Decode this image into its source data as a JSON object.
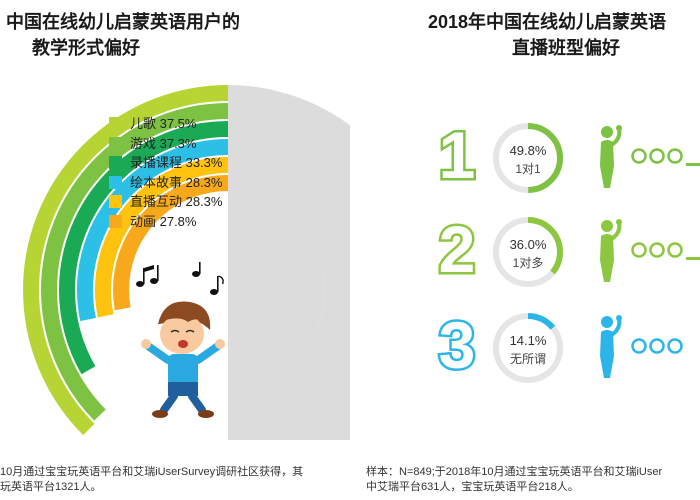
{
  "left": {
    "title_line1": "中国在线幼儿启蒙英语用户的",
    "title_line2": "教学形式偏好",
    "footnote_line1": "10月通过宝宝玩英语平台和艾瑞iUserSurvey调研社区获得，其",
    "footnote_line2": "玩英语平台1321人。"
  },
  "right": {
    "title_line1": "2018年中国在线幼儿启蒙英语",
    "title_line2": "直播班型偏好",
    "footnote_line1": "样本：N=849;于2018年10月通过宝宝玩英语平台和艾瑞iUser",
    "footnote_line2": "中艾瑞平台631人，宝宝玩英语平台218人。"
  },
  "chart_data": [
    {
      "type": "radial-bar",
      "title": "中国在线幼儿启蒙英语用户的教学形式偏好",
      "categories": [
        "儿歌",
        "游戏",
        "录播课程",
        "绘本故事",
        "直播互动",
        "动画"
      ],
      "values": [
        37.5,
        37.3,
        33.3,
        28.3,
        28.3,
        27.8
      ],
      "unit": "%",
      "colors": [
        "#b6d534",
        "#7dc242",
        "#1aaa55",
        "#2cc0e6",
        "#ffc20e",
        "#f7a81b"
      ],
      "legend": [
        {
          "name": "儿歌",
          "value": "37.5%",
          "color": "#b6d534"
        },
        {
          "name": "游戏",
          "value": "37.3%",
          "color": "#7dc242"
        },
        {
          "name": "录播课程",
          "value": "33.3%",
          "color": "#1aaa55"
        },
        {
          "name": "绘本故事",
          "value": "28.3%",
          "color": "#2cc0e6"
        },
        {
          "name": "直播互动",
          "value": "28.3%",
          "color": "#ffc20e"
        },
        {
          "name": "动画",
          "value": "27.8%",
          "color": "#f7a81b"
        }
      ]
    },
    {
      "type": "donut",
      "title": "2018年中国在线幼儿启蒙英语直播班型偏好",
      "categories": [
        "1对1",
        "1对多",
        "无所谓"
      ],
      "values": [
        49.8,
        36.0,
        14.1
      ],
      "unit": "%",
      "colors": [
        "#7dc242",
        "#8dc63f",
        "#2cb5e8"
      ],
      "items": [
        {
          "rank": "1",
          "pct": "49.8%",
          "label": "1对1",
          "value": 49.8,
          "color": "#7dc242"
        },
        {
          "rank": "2",
          "pct": "36.0%",
          "label": "1对多",
          "value": 36.0,
          "color": "#8dc63f"
        },
        {
          "rank": "3",
          "pct": "14.1%",
          "label": "无所谓",
          "value": 14.1,
          "color": "#2cb5e8"
        }
      ]
    }
  ]
}
